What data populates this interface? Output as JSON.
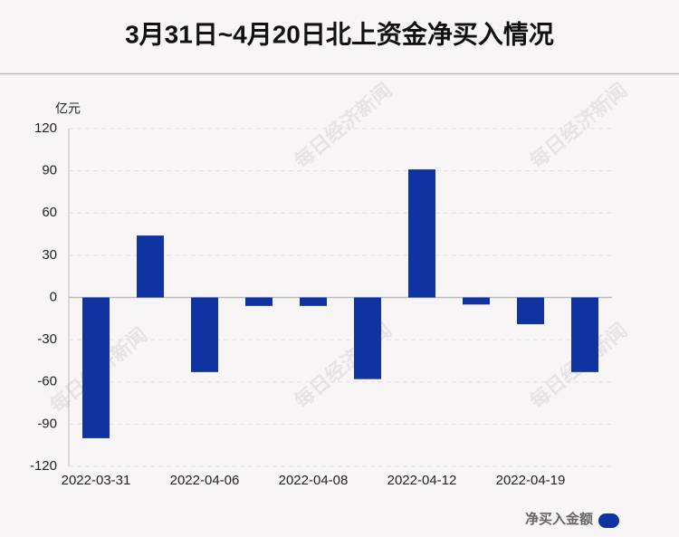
{
  "chart_data": {
    "type": "bar",
    "title": "3月31日~4月20日北上资金净买入情况",
    "y_label": "亿元",
    "categories": [
      "2022-03-31",
      null,
      "2022-04-06",
      null,
      "2022-04-08",
      null,
      "2022-04-12",
      null,
      "2022-04-19",
      null
    ],
    "series": [
      {
        "name": "净买入金额",
        "color": "#0f33a0",
        "values": [
          -100,
          44,
          -53,
          -6,
          -6,
          -58,
          91,
          -5,
          -19,
          -53
        ]
      }
    ],
    "ylim": [
      -120,
      120
    ],
    "yticks": [
      120,
      90,
      60,
      30,
      0,
      -30,
      -60,
      -90,
      -120
    ],
    "grid": true,
    "watermark": "每日经济新闻"
  }
}
